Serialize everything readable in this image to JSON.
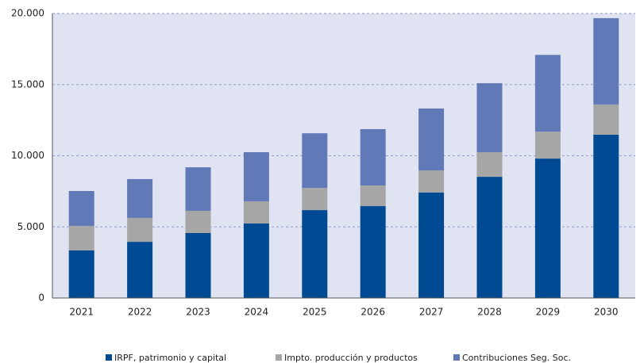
{
  "chart_data": {
    "type": "bar",
    "stacked": true,
    "categories": [
      "2021",
      "2022",
      "2023",
      "2024",
      "2025",
      "2026",
      "2027",
      "2028",
      "2029",
      "2030"
    ],
    "series": [
      {
        "name": "IRPF, patrimonio y capital",
        "color": "#004a93",
        "values": [
          3350,
          3950,
          4570,
          5240,
          6180,
          6460,
          7410,
          8520,
          9800,
          11480
        ]
      },
      {
        "name": "Impto. producción y productos",
        "color": "#a6a6a6",
        "values": [
          1720,
          1680,
          1560,
          1560,
          1560,
          1450,
          1560,
          1730,
          1890,
          2120
        ]
      },
      {
        "name": "Contribuciones Seg. Soc.",
        "color": "#6279b8",
        "values": [
          2450,
          2730,
          3060,
          3450,
          3840,
          3960,
          4350,
          4850,
          5400,
          6070
        ]
      }
    ],
    "ylim": [
      0,
      20000
    ],
    "yticks": [
      0,
      {
        "value": 5000,
        "label": "5.000"
      },
      {
        "value": 10000,
        "label": "10.000"
      },
      {
        "value": 15000,
        "label": "15.000"
      },
      {
        "value": 20000,
        "label": "20.000"
      }
    ],
    "grid": true,
    "legend": "bottom"
  }
}
